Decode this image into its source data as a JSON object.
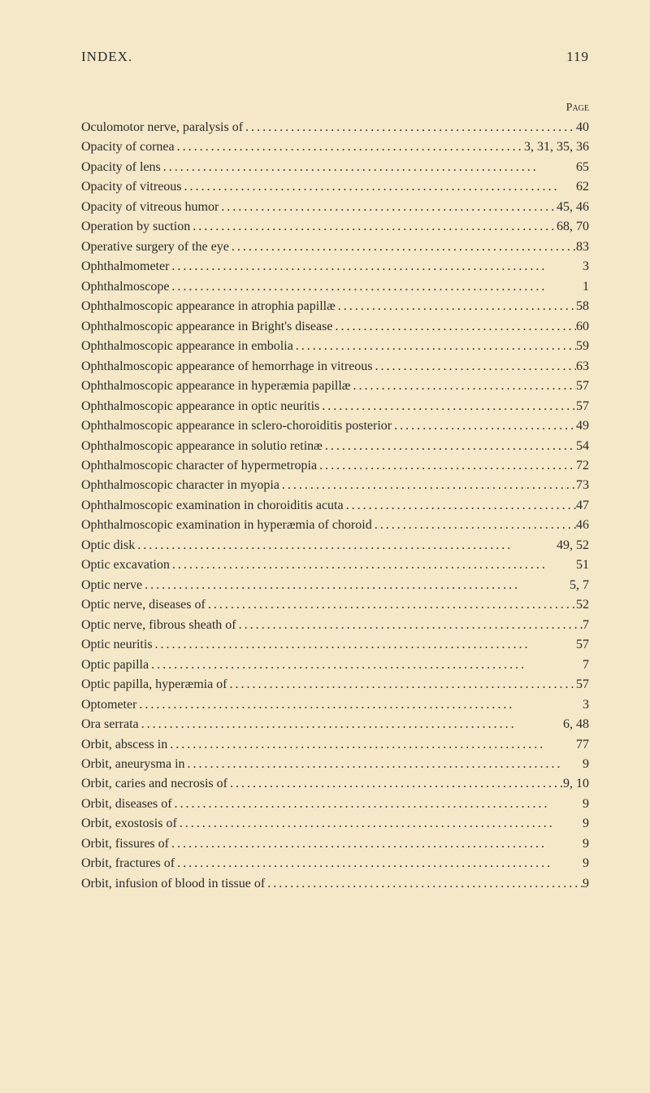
{
  "header": {
    "title": "INDEX.",
    "pageNumber": "119"
  },
  "pageLabel": "Page",
  "entries": [
    {
      "label": "Oculomotor nerve, paralysis of",
      "page": "40"
    },
    {
      "label": "Opacity of cornea",
      "page": "3, 31, 35, 36"
    },
    {
      "label": "Opacity of lens",
      "page": "65"
    },
    {
      "label": "Opacity of vitreous",
      "page": "62"
    },
    {
      "label": "Opacity of vitreous humor",
      "page": "45, 46"
    },
    {
      "label": "Operation by suction",
      "page": "68, 70"
    },
    {
      "label": "Operative surgery of the eye",
      "page": "83"
    },
    {
      "label": "Ophthalmometer",
      "page": "3"
    },
    {
      "label": "Ophthalmoscope",
      "page": "1"
    },
    {
      "label": "Ophthalmoscopic appearance in atrophia papillæ",
      "page": "58"
    },
    {
      "label": "Ophthalmoscopic appearance in Bright's disease",
      "page": "60"
    },
    {
      "label": "Ophthalmoscopic appearance in embolia",
      "page": "59"
    },
    {
      "label": "Ophthalmoscopic appearance of hemorrhage in vitreous",
      "page": "63"
    },
    {
      "label": "Ophthalmoscopic appearance in hyperæmia papillæ",
      "page": "57"
    },
    {
      "label": "Ophthalmoscopic appearance in optic neuritis",
      "page": "57"
    },
    {
      "label": "Ophthalmoscopic appearance in sclero-choroiditis posterior",
      "page": "49"
    },
    {
      "label": "Ophthalmoscopic appearance in solutio retinæ",
      "page": "54"
    },
    {
      "label": "Ophthalmoscopic character of hypermetropia",
      "page": "72"
    },
    {
      "label": "Ophthalmoscopic character in myopia",
      "page": "73"
    },
    {
      "label": "Ophthalmoscopic examination in choroiditis acuta",
      "page": "47"
    },
    {
      "label": "Ophthalmoscopic examination in hyperæmia of choroid",
      "page": "46"
    },
    {
      "label": "Optic disk",
      "page": "49, 52"
    },
    {
      "label": "Optic excavation",
      "page": "51"
    },
    {
      "label": "Optic nerve",
      "page": "5, 7"
    },
    {
      "label": "Optic nerve, diseases of",
      "page": "52"
    },
    {
      "label": "Optic nerve, fibrous sheath of",
      "page": "7"
    },
    {
      "label": "Optic neuritis",
      "page": "57"
    },
    {
      "label": "Optic papilla",
      "page": "7"
    },
    {
      "label": "Optic papilla, hyperæmia of",
      "page": "57"
    },
    {
      "label": "Optometer",
      "page": "3"
    },
    {
      "label": "Ora serrata",
      "page": "6, 48"
    },
    {
      "label": "Orbit, abscess in",
      "page": "77"
    },
    {
      "label": "Orbit, aneurysma in",
      "page": "9"
    },
    {
      "label": "Orbit, caries and necrosis of",
      "page": "9, 10"
    },
    {
      "label": "Orbit, diseases of",
      "page": "9"
    },
    {
      "label": "Orbit, exostosis of",
      "page": "9"
    },
    {
      "label": "Orbit, fissures of",
      "page": "9"
    },
    {
      "label": "Orbit, fractures of",
      "page": "9"
    },
    {
      "label": "Orbit, infusion of blood in tissue of",
      "page": "9"
    }
  ],
  "styling": {
    "backgroundColor": "#f5e8c8",
    "textColor": "#2a2a2a",
    "fontFamily": "Georgia, Times New Roman, serif",
    "bodyFontSize": 16,
    "headerFontSize": 17,
    "lineHeight": 1.53,
    "pageWidth": 800,
    "pageHeight": 1344
  }
}
